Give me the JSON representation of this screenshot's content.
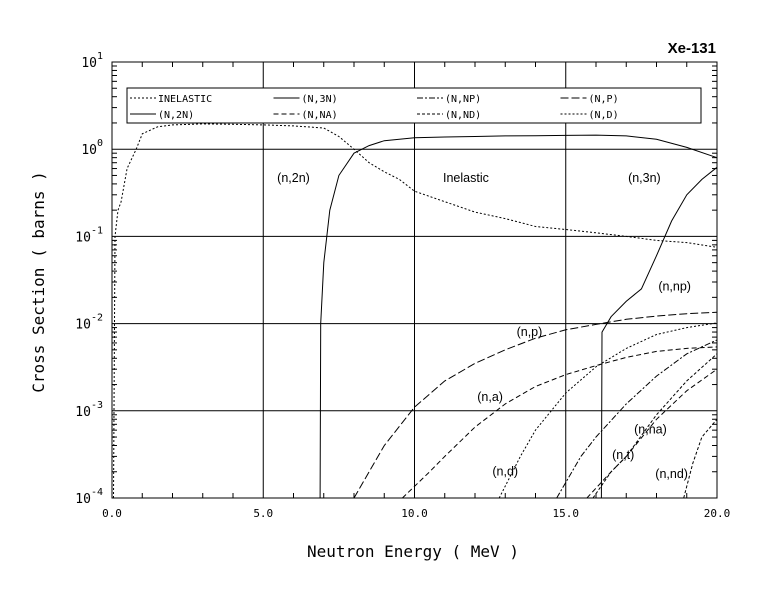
{
  "chart_data": {
    "type": "line",
    "title": "Xe-131",
    "xlabel": "Neutron Energy ( MeV )",
    "ylabel": "Cross Section ( barns )",
    "xlim": [
      0,
      20
    ],
    "ylim": [
      0.0001,
      10
    ],
    "yscale": "log",
    "grid": true,
    "legend_position": "top",
    "x_ticks": [
      "0.0",
      "5.0",
      "10.0",
      "15.0",
      "20.0"
    ],
    "y_ticks": [
      {
        "base": "10",
        "exp": "1"
      },
      {
        "base": "10",
        "exp": "0"
      },
      {
        "base": "10",
        "exp": "-1"
      },
      {
        "base": "10",
        "exp": "-2"
      },
      {
        "base": "10",
        "exp": "-3"
      },
      {
        "base": "10",
        "exp": "-4"
      }
    ],
    "legend": [
      {
        "label": "INELASTIC",
        "dash": "2,2"
      },
      {
        "label": "(N,3N)",
        "dash": ""
      },
      {
        "label": "(N,NP)",
        "dash": "6,2,2,2"
      },
      {
        "label": "(N,P)",
        "dash": "8,3"
      },
      {
        "label": "(N,2N)",
        "dash": ""
      },
      {
        "label": "(N,NA)",
        "dash": "5,3"
      },
      {
        "label": "(N,ND)",
        "dash": "3,2"
      },
      {
        "label": "(N,D)",
        "dash": "2,2"
      }
    ],
    "series": [
      {
        "label": "Inelastic",
        "dash": "2,2",
        "x": [
          0.05,
          0.1,
          0.2,
          0.3,
          0.5,
          0.8,
          1.0,
          1.5,
          2.0,
          3.0,
          4.0,
          5.0,
          6.0,
          7.0,
          7.5,
          8.0,
          8.5,
          9.0,
          9.5,
          10.0,
          11.0,
          12.0,
          13.0,
          14.0,
          15.0,
          16.0,
          17.0,
          18.0,
          19.0,
          20.0
        ],
        "y": [
          0.0001,
          0.1,
          0.2,
          0.25,
          0.6,
          1.0,
          1.5,
          1.8,
          1.9,
          1.95,
          1.93,
          1.9,
          1.85,
          1.75,
          1.4,
          1.0,
          0.7,
          0.55,
          0.45,
          0.33,
          0.25,
          0.19,
          0.16,
          0.13,
          0.12,
          0.11,
          0.1,
          0.09,
          0.085,
          0.075
        ]
      },
      {
        "label": "(n,2n)",
        "dash": "",
        "x": [
          6.88,
          6.9,
          7.0,
          7.2,
          7.5,
          8.0,
          8.5,
          9.0,
          10.0,
          11.0,
          12.0,
          13.0,
          14.0,
          15.0,
          16.0,
          17.0,
          18.0,
          19.0,
          20.0
        ],
        "y": [
          0.0001,
          0.01,
          0.05,
          0.2,
          0.5,
          0.9,
          1.1,
          1.25,
          1.35,
          1.38,
          1.4,
          1.42,
          1.43,
          1.44,
          1.45,
          1.42,
          1.3,
          1.05,
          0.8
        ]
      },
      {
        "label": "(n,3n)",
        "dash": "",
        "x": [
          16.18,
          16.2,
          16.5,
          17.0,
          17.5,
          18.0,
          18.5,
          19.0,
          19.5,
          20.0
        ],
        "y": [
          0.0001,
          0.008,
          0.012,
          0.018,
          0.025,
          0.06,
          0.15,
          0.3,
          0.45,
          0.62
        ]
      },
      {
        "label": "(n,p)",
        "dash": "8,3",
        "x": [
          8.0,
          9.0,
          10.0,
          11.0,
          12.0,
          13.0,
          14.0,
          15.0,
          16.0,
          17.0,
          18.0,
          19.0,
          20.0
        ],
        "y": [
          0.0001,
          0.0004,
          0.0011,
          0.0022,
          0.0035,
          0.005,
          0.0068,
          0.0085,
          0.0098,
          0.0112,
          0.0122,
          0.013,
          0.0135
        ]
      },
      {
        "label": "(n,a)",
        "dash": "5,3",
        "x": [
          9.6,
          10.5,
          11.0,
          12.0,
          13.0,
          14.0,
          15.0,
          16.0,
          17.0,
          18.0,
          19.0,
          20.0
        ],
        "y": [
          0.0001,
          0.0002,
          0.0003,
          0.00065,
          0.0012,
          0.0019,
          0.0026,
          0.0033,
          0.0041,
          0.0048,
          0.0052,
          0.0054
        ]
      },
      {
        "label": "(n,np)",
        "dash": "6,2,2,2",
        "x": [
          14.7,
          15.5,
          16.0,
          17.0,
          18.0,
          19.0,
          20.0
        ],
        "y": [
          0.0001,
          0.0003,
          0.0005,
          0.0012,
          0.0025,
          0.0045,
          0.0065
        ]
      },
      {
        "label": "(n,d)",
        "dash": "2,2",
        "x": [
          12.8,
          13.5,
          14.0,
          15.0,
          16.0,
          17.0,
          18.0,
          19.0,
          20.0
        ],
        "y": [
          0.0001,
          0.0003,
          0.0006,
          0.0016,
          0.0032,
          0.0052,
          0.0075,
          0.009,
          0.0102
        ]
      },
      {
        "label": "(n,na)",
        "dash": "5,3",
        "x": [
          15.7,
          16.5,
          17.0,
          18.0,
          19.0,
          20.0
        ],
        "y": [
          0.0001,
          0.0002,
          0.0003,
          0.0008,
          0.0017,
          0.003
        ]
      },
      {
        "label": "(n,t)",
        "dash": "3,2",
        "x": [
          15.9,
          16.5,
          17.0,
          18.0,
          19.0,
          20.0
        ],
        "y": [
          0.0001,
          0.0002,
          0.0003,
          0.0009,
          0.0022,
          0.0045
        ]
      },
      {
        "label": "(n,nd)",
        "dash": "3,2",
        "x": [
          18.9,
          19.2,
          19.5,
          20.0
        ],
        "y": [
          0.0001,
          0.00025,
          0.0005,
          0.0008
        ]
      }
    ],
    "annotations": [
      {
        "text": "(n,2n)",
        "x": 6.0,
        "y": 0.42
      },
      {
        "text": "Inelastic",
        "x": 11.7,
        "y": 0.42
      },
      {
        "text": "(n,3n)",
        "x": 17.6,
        "y": 0.42
      },
      {
        "text": "(n,np)",
        "x": 18.6,
        "y": 0.024
      },
      {
        "text": "(n,p)",
        "x": 13.8,
        "y": 0.0072
      },
      {
        "text": "(n,a)",
        "x": 12.5,
        "y": 0.0013
      },
      {
        "text": "(n,na)",
        "x": 17.8,
        "y": 0.00055
      },
      {
        "text": "(n,t)",
        "x": 16.9,
        "y": 0.00028
      },
      {
        "text": "(n,d)",
        "x": 13.0,
        "y": 0.00018
      },
      {
        "text": "(n,nd)",
        "x": 18.5,
        "y": 0.00017
      }
    ]
  }
}
